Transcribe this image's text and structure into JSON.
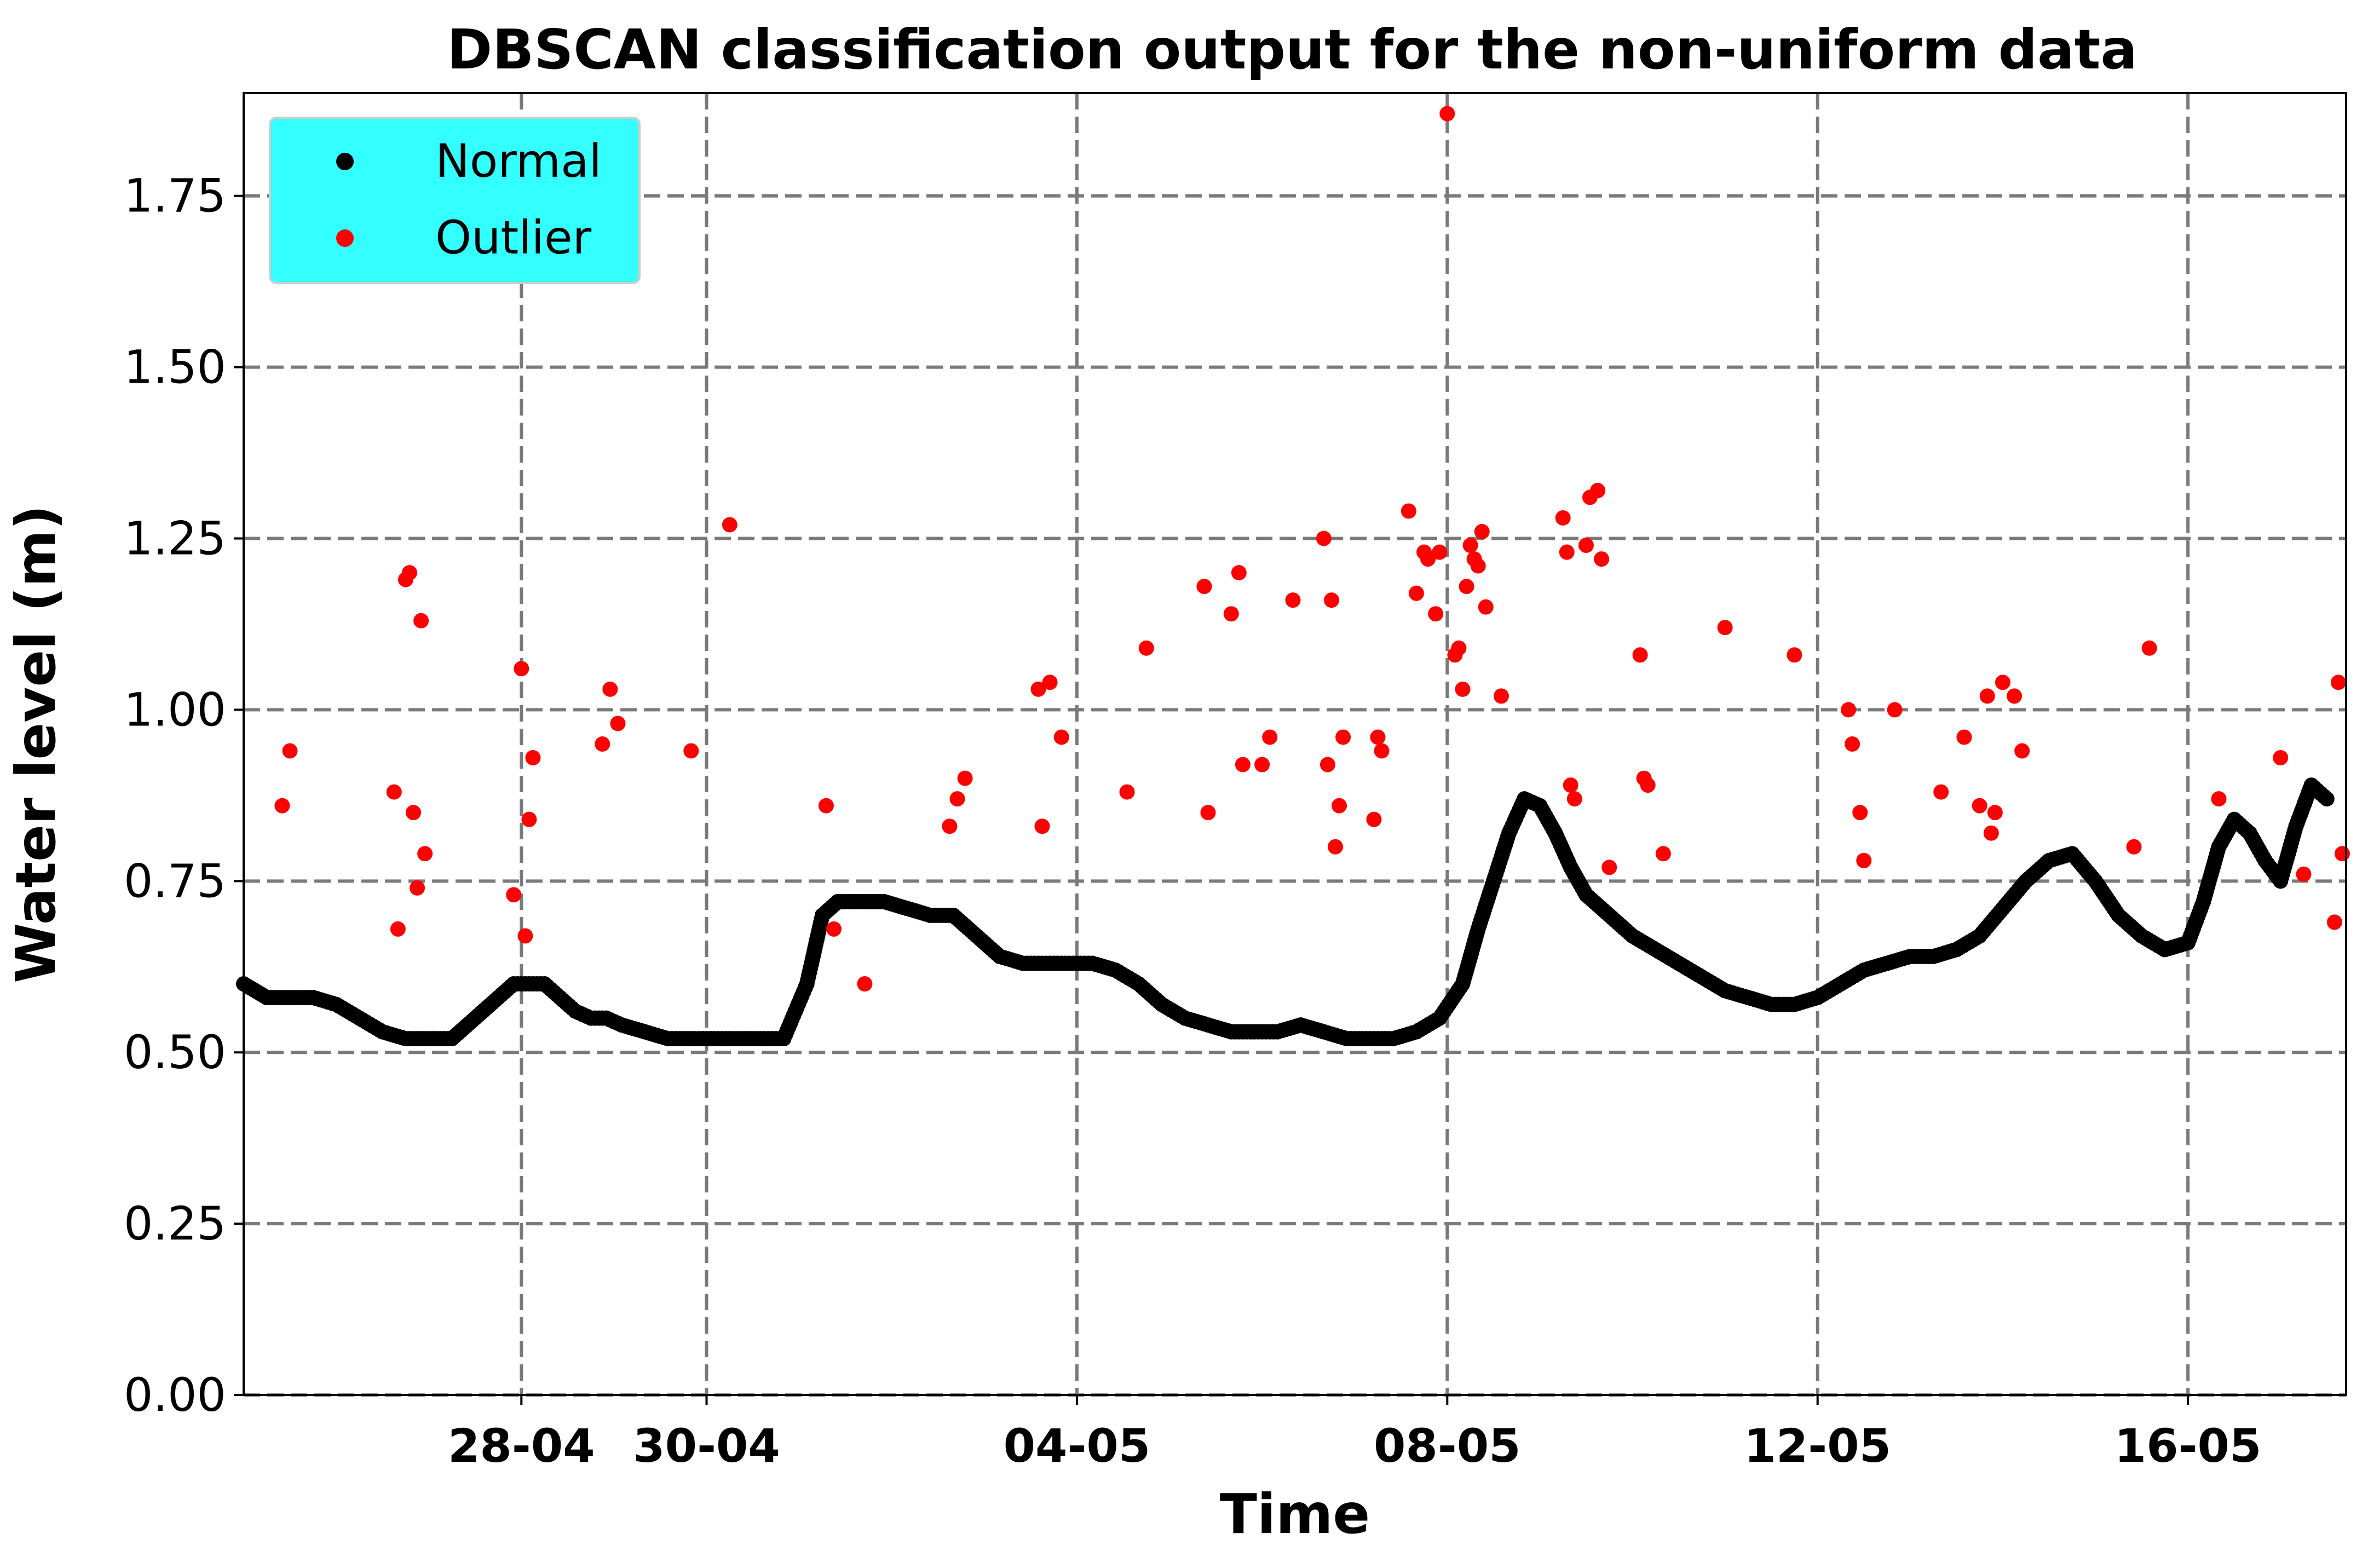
{
  "chart_data": {
    "type": "scatter",
    "title": "DBSCAN classification output for the non-uniform data",
    "xlabel": "Time",
    "ylabel": "Water level (m)",
    "xlim": [
      "2020-04-25 00:00",
      "2020-05-17 17:00"
    ],
    "ylim": [
      0,
      1.9
    ],
    "yticks": [
      0.0,
      0.25,
      0.5,
      0.75,
      1.0,
      1.25,
      1.5,
      1.75
    ],
    "ytick_labels": [
      "0.00",
      "0.25",
      "0.50",
      "0.75",
      "1.00",
      "1.25",
      "1.50",
      "1.75"
    ],
    "xticks": [
      "2020-04-28",
      "2020-04-30",
      "2020-05-04",
      "2020-05-08",
      "2020-05-12",
      "2020-05-16"
    ],
    "xtick_labels": [
      "28-04",
      "30-04",
      "04-05",
      "08-05",
      "12-05",
      "16-05"
    ],
    "grid": true,
    "legend_position": "top-left",
    "legend_background": "#33ffff",
    "series": [
      {
        "name": "Normal",
        "color": "#000000",
        "points": [
          [
            "2020-04-25 00:00",
            0.6
          ],
          [
            "2020-04-25 06:00",
            0.58
          ],
          [
            "2020-04-25 12:00",
            0.58
          ],
          [
            "2020-04-25 18:00",
            0.58
          ],
          [
            "2020-04-26 00:00",
            0.57
          ],
          [
            "2020-04-26 06:00",
            0.55
          ],
          [
            "2020-04-26 12:00",
            0.53
          ],
          [
            "2020-04-26 18:00",
            0.52
          ],
          [
            "2020-04-27 00:00",
            0.52
          ],
          [
            "2020-04-27 06:00",
            0.52
          ],
          [
            "2020-04-27 12:00",
            0.55
          ],
          [
            "2020-04-27 18:00",
            0.58
          ],
          [
            "2020-04-27 22:00",
            0.6
          ],
          [
            "2020-04-28 02:00",
            0.6
          ],
          [
            "2020-04-28 06:00",
            0.6
          ],
          [
            "2020-04-28 10:00",
            0.58
          ],
          [
            "2020-04-28 14:00",
            0.56
          ],
          [
            "2020-04-28 18:00",
            0.55
          ],
          [
            "2020-04-28 22:00",
            0.55
          ],
          [
            "2020-04-29 02:00",
            0.54
          ],
          [
            "2020-04-29 08:00",
            0.53
          ],
          [
            "2020-04-29 14:00",
            0.52
          ],
          [
            "2020-04-29 20:00",
            0.52
          ],
          [
            "2020-04-30 02:00",
            0.52
          ],
          [
            "2020-04-30 08:00",
            0.52
          ],
          [
            "2020-04-30 14:00",
            0.52
          ],
          [
            "2020-04-30 20:00",
            0.52
          ],
          [
            "2020-05-01 02:00",
            0.6
          ],
          [
            "2020-05-01 06:00",
            0.7
          ],
          [
            "2020-05-01 10:00",
            0.72
          ],
          [
            "2020-05-01 16:00",
            0.72
          ],
          [
            "2020-05-01 22:00",
            0.72
          ],
          [
            "2020-05-02 04:00",
            0.71
          ],
          [
            "2020-05-02 10:00",
            0.7
          ],
          [
            "2020-05-02 16:00",
            0.7
          ],
          [
            "2020-05-02 22:00",
            0.67
          ],
          [
            "2020-05-03 04:00",
            0.64
          ],
          [
            "2020-05-03 10:00",
            0.63
          ],
          [
            "2020-05-03 16:00",
            0.63
          ],
          [
            "2020-05-03 22:00",
            0.63
          ],
          [
            "2020-05-04 04:00",
            0.63
          ],
          [
            "2020-05-04 10:00",
            0.62
          ],
          [
            "2020-05-04 16:00",
            0.6
          ],
          [
            "2020-05-04 22:00",
            0.57
          ],
          [
            "2020-05-05 04:00",
            0.55
          ],
          [
            "2020-05-05 10:00",
            0.54
          ],
          [
            "2020-05-05 16:00",
            0.53
          ],
          [
            "2020-05-05 22:00",
            0.53
          ],
          [
            "2020-05-06 04:00",
            0.53
          ],
          [
            "2020-05-06 10:00",
            0.54
          ],
          [
            "2020-05-06 16:00",
            0.53
          ],
          [
            "2020-05-06 22:00",
            0.52
          ],
          [
            "2020-05-07 04:00",
            0.52
          ],
          [
            "2020-05-07 10:00",
            0.52
          ],
          [
            "2020-05-07 16:00",
            0.53
          ],
          [
            "2020-05-07 22:00",
            0.55
          ],
          [
            "2020-05-08 04:00",
            0.6
          ],
          [
            "2020-05-08 08:00",
            0.68
          ],
          [
            "2020-05-08 12:00",
            0.75
          ],
          [
            "2020-05-08 16:00",
            0.82
          ],
          [
            "2020-05-08 20:00",
            0.87
          ],
          [
            "2020-05-09 00:00",
            0.86
          ],
          [
            "2020-05-09 04:00",
            0.82
          ],
          [
            "2020-05-09 08:00",
            0.77
          ],
          [
            "2020-05-09 12:00",
            0.73
          ],
          [
            "2020-05-09 18:00",
            0.7
          ],
          [
            "2020-05-10 00:00",
            0.67
          ],
          [
            "2020-05-10 06:00",
            0.65
          ],
          [
            "2020-05-10 12:00",
            0.63
          ],
          [
            "2020-05-10 18:00",
            0.61
          ],
          [
            "2020-05-11 00:00",
            0.59
          ],
          [
            "2020-05-11 06:00",
            0.58
          ],
          [
            "2020-05-11 12:00",
            0.57
          ],
          [
            "2020-05-11 18:00",
            0.57
          ],
          [
            "2020-05-12 00:00",
            0.58
          ],
          [
            "2020-05-12 06:00",
            0.6
          ],
          [
            "2020-05-12 12:00",
            0.62
          ],
          [
            "2020-05-12 18:00",
            0.63
          ],
          [
            "2020-05-13 00:00",
            0.64
          ],
          [
            "2020-05-13 06:00",
            0.64
          ],
          [
            "2020-05-13 12:00",
            0.65
          ],
          [
            "2020-05-13 18:00",
            0.67
          ],
          [
            "2020-05-14 00:00",
            0.71
          ],
          [
            "2020-05-14 06:00",
            0.75
          ],
          [
            "2020-05-14 12:00",
            0.78
          ],
          [
            "2020-05-14 18:00",
            0.79
          ],
          [
            "2020-05-15 00:00",
            0.75
          ],
          [
            "2020-05-15 06:00",
            0.7
          ],
          [
            "2020-05-15 12:00",
            0.67
          ],
          [
            "2020-05-15 18:00",
            0.65
          ],
          [
            "2020-05-16 00:00",
            0.66
          ],
          [
            "2020-05-16 04:00",
            0.72
          ],
          [
            "2020-05-16 08:00",
            0.8
          ],
          [
            "2020-05-16 12:00",
            0.84
          ],
          [
            "2020-05-16 16:00",
            0.82
          ],
          [
            "2020-05-16 20:00",
            0.78
          ],
          [
            "2020-05-17 00:00",
            0.75
          ],
          [
            "2020-05-17 04:00",
            0.83
          ],
          [
            "2020-05-17 08:00",
            0.89
          ],
          [
            "2020-05-17 12:00",
            0.87
          ]
        ]
      },
      {
        "name": "Outlier",
        "color": "#ff0000",
        "points": [
          [
            "2020-04-25 10:00",
            0.86
          ],
          [
            "2020-04-25 12:00",
            0.94
          ],
          [
            "2020-04-26 15:00",
            0.88
          ],
          [
            "2020-04-26 16:00",
            0.68
          ],
          [
            "2020-04-26 18:00",
            1.19
          ],
          [
            "2020-04-26 19:00",
            1.2
          ],
          [
            "2020-04-26 20:00",
            0.85
          ],
          [
            "2020-04-26 21:00",
            0.74
          ],
          [
            "2020-04-26 22:00",
            1.13
          ],
          [
            "2020-04-26 23:00",
            0.79
          ],
          [
            "2020-04-27 22:00",
            0.73
          ],
          [
            "2020-04-28 00:00",
            1.06
          ],
          [
            "2020-04-28 01:00",
            0.67
          ],
          [
            "2020-04-28 02:00",
            0.84
          ],
          [
            "2020-04-28 03:00",
            0.93
          ],
          [
            "2020-04-28 21:00",
            0.95
          ],
          [
            "2020-04-28 23:00",
            1.03
          ],
          [
            "2020-04-29 01:00",
            0.98
          ],
          [
            "2020-04-29 20:00",
            0.94
          ],
          [
            "2020-04-30 06:00",
            1.27
          ],
          [
            "2020-05-01 07:00",
            0.86
          ],
          [
            "2020-05-01 09:00",
            0.68
          ],
          [
            "2020-05-01 17:00",
            0.6
          ],
          [
            "2020-05-02 15:00",
            0.83
          ],
          [
            "2020-05-02 17:00",
            0.87
          ],
          [
            "2020-05-02 19:00",
            0.9
          ],
          [
            "2020-05-03 14:00",
            1.03
          ],
          [
            "2020-05-03 15:00",
            0.83
          ],
          [
            "2020-05-03 17:00",
            1.04
          ],
          [
            "2020-05-03 20:00",
            0.96
          ],
          [
            "2020-05-04 13:00",
            0.88
          ],
          [
            "2020-05-04 18:00",
            1.09
          ],
          [
            "2020-05-05 09:00",
            1.18
          ],
          [
            "2020-05-05 10:00",
            0.85
          ],
          [
            "2020-05-05 16:00",
            1.14
          ],
          [
            "2020-05-05 18:00",
            1.2
          ],
          [
            "2020-05-05 19:00",
            0.92
          ],
          [
            "2020-05-06 00:00",
            0.92
          ],
          [
            "2020-05-06 02:00",
            0.96
          ],
          [
            "2020-05-06 08:00",
            1.16
          ],
          [
            "2020-05-06 16:00",
            1.25
          ],
          [
            "2020-05-06 17:00",
            0.92
          ],
          [
            "2020-05-06 18:00",
            1.16
          ],
          [
            "2020-05-06 19:00",
            0.8
          ],
          [
            "2020-05-06 20:00",
            0.86
          ],
          [
            "2020-05-06 21:00",
            0.96
          ],
          [
            "2020-05-07 05:00",
            0.84
          ],
          [
            "2020-05-07 06:00",
            0.96
          ],
          [
            "2020-05-07 07:00",
            0.94
          ],
          [
            "2020-05-07 14:00",
            1.29
          ],
          [
            "2020-05-07 16:00",
            1.17
          ],
          [
            "2020-05-07 18:00",
            1.23
          ],
          [
            "2020-05-07 19:00",
            1.22
          ],
          [
            "2020-05-07 21:00",
            1.14
          ],
          [
            "2020-05-07 22:00",
            1.23
          ],
          [
            "2020-05-08 00:00",
            1.87
          ],
          [
            "2020-05-08 02:00",
            1.08
          ],
          [
            "2020-05-08 03:00",
            1.09
          ],
          [
            "2020-05-08 04:00",
            1.03
          ],
          [
            "2020-05-08 05:00",
            1.18
          ],
          [
            "2020-05-08 06:00",
            1.24
          ],
          [
            "2020-05-08 07:00",
            1.22
          ],
          [
            "2020-05-08 08:00",
            1.21
          ],
          [
            "2020-05-08 09:00",
            1.26
          ],
          [
            "2020-05-08 10:00",
            1.15
          ],
          [
            "2020-05-08 14:00",
            1.02
          ],
          [
            "2020-05-09 06:00",
            1.28
          ],
          [
            "2020-05-09 07:00",
            1.23
          ],
          [
            "2020-05-09 08:00",
            0.89
          ],
          [
            "2020-05-09 09:00",
            0.87
          ],
          [
            "2020-05-09 12:00",
            1.24
          ],
          [
            "2020-05-09 13:00",
            1.31
          ],
          [
            "2020-05-09 15:00",
            1.32
          ],
          [
            "2020-05-09 16:00",
            1.22
          ],
          [
            "2020-05-09 18:00",
            0.77
          ],
          [
            "2020-05-10 02:00",
            1.08
          ],
          [
            "2020-05-10 03:00",
            0.9
          ],
          [
            "2020-05-10 04:00",
            0.89
          ],
          [
            "2020-05-10 08:00",
            0.79
          ],
          [
            "2020-05-11 00:00",
            1.12
          ],
          [
            "2020-05-11 18:00",
            1.08
          ],
          [
            "2020-05-12 08:00",
            1.0
          ],
          [
            "2020-05-12 09:00",
            0.95
          ],
          [
            "2020-05-12 11:00",
            0.85
          ],
          [
            "2020-05-12 12:00",
            0.78
          ],
          [
            "2020-05-12 20:00",
            1.0
          ],
          [
            "2020-05-13 08:00",
            0.88
          ],
          [
            "2020-05-13 14:00",
            0.96
          ],
          [
            "2020-05-13 18:00",
            0.86
          ],
          [
            "2020-05-13 20:00",
            1.02
          ],
          [
            "2020-05-13 21:00",
            0.82
          ],
          [
            "2020-05-13 22:00",
            0.85
          ],
          [
            "2020-05-14 00:00",
            1.04
          ],
          [
            "2020-05-14 03:00",
            1.02
          ],
          [
            "2020-05-14 05:00",
            0.94
          ],
          [
            "2020-05-15 10:00",
            0.8
          ],
          [
            "2020-05-15 14:00",
            1.09
          ],
          [
            "2020-05-16 08:00",
            0.87
          ],
          [
            "2020-05-17 00:00",
            0.93
          ],
          [
            "2020-05-17 06:00",
            0.76
          ],
          [
            "2020-05-17 14:00",
            0.69
          ],
          [
            "2020-05-17 15:00",
            1.04
          ],
          [
            "2020-05-17 16:00",
            0.79
          ]
        ]
      }
    ]
  }
}
